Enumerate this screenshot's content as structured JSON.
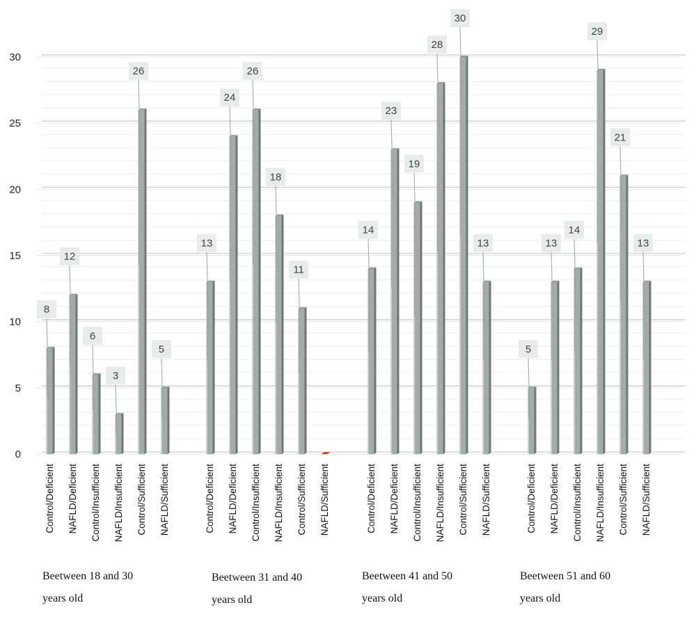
{
  "chart_data": {
    "type": "bar",
    "title": "",
    "xlabel": "",
    "ylabel": "",
    "ylim": [
      0,
      30
    ],
    "yticks": [
      0,
      5,
      10,
      15,
      20,
      25,
      30
    ],
    "grid": true,
    "legend": "none",
    "colors": {
      "bar": "#a4aca9",
      "bar_shadow": "#6f7775",
      "zero_bar": "#c0501f",
      "label_box": "#e7ecea",
      "grid": "#dcdcdc"
    },
    "groups": [
      {
        "label_lines": [
          "Beetween 18 and 30",
          "years old"
        ],
        "categories": [
          "Control/Deficient",
          "NAFLD/Deficient",
          "Control/Insufficient",
          "NAFLD/Insufficient",
          "Control/Sufficient",
          "NAFLD/Sufficient"
        ],
        "values": [
          8,
          12,
          6,
          3,
          26,
          5
        ]
      },
      {
        "label_lines": [
          "Beetween 31 and 40",
          "years old"
        ],
        "categories": [
          "Control/Deficient",
          "NAFLD/Deficient",
          "Control/Insufficient",
          "NAFLD/Insufficient",
          "Control/Sufficient",
          "NAFLD/Sufficient"
        ],
        "values": [
          13,
          24,
          26,
          18,
          11,
          0
        ]
      },
      {
        "label_lines": [
          "Beetween 41 and 50",
          "years old"
        ],
        "categories": [
          "Control/Deficient",
          "NAFLD/Deficient",
          "Control/Insufficient",
          "NAFLD/Insufficient",
          "Control/Sufficient",
          "NAFLD/Sufficient"
        ],
        "values": [
          14,
          23,
          19,
          28,
          30,
          13
        ]
      },
      {
        "label_lines": [
          "Beetween 51 and 60",
          "years old"
        ],
        "categories": [
          "Control/Deficient",
          "NAFLD/Deficient",
          "Control/Insufficient",
          "NAFLD/Insufficient",
          "Control/Sufficient",
          "NAFLD/Sufficient"
        ],
        "values": [
          5,
          13,
          14,
          29,
          21,
          13
        ]
      }
    ]
  }
}
